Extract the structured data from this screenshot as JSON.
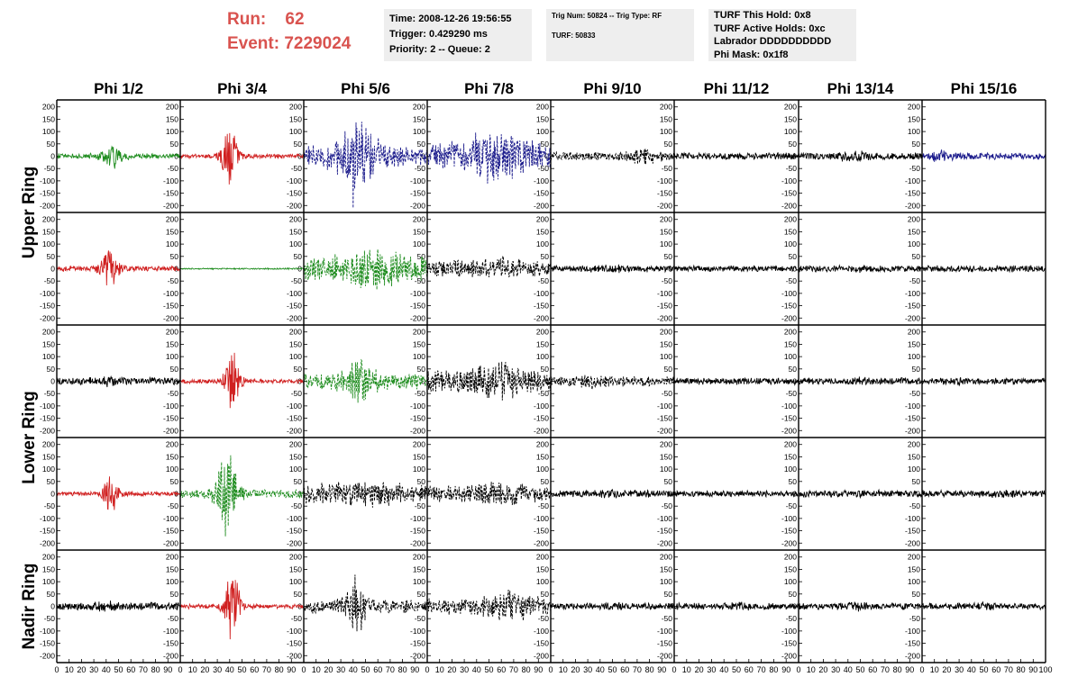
{
  "header": {
    "run_label": "Run:",
    "run_value": "62",
    "event_label": "Event:",
    "event_value": "7229024",
    "time": "Time: 2008-12-26 19:56:55",
    "trigger": "Trigger: 0.429290 ms",
    "priority": "Priority: 2 -- Queue: 2",
    "trig_num": "Trig Num: 50824 -- Trig Type: RF",
    "turf": "TURF: 50833",
    "turf_hold": "TURF This Hold: 0x8",
    "turf_active": "TURF Active Holds: 0xc",
    "labrador": "Labrador DDDDDDDDDD",
    "phi_mask": "Phi Mask: 0x1f8"
  },
  "colors": {
    "header_red": "#d9534f",
    "red": "#d02020",
    "green": "#1e8c1e",
    "blue": "#1c1c8c",
    "black": "#000000"
  },
  "chart_data": {
    "type": "line",
    "columns": [
      "Phi 1/2",
      "Phi 3/4",
      "Phi 5/6",
      "Phi 7/8",
      "Phi 9/10",
      "Phi 11/12",
      "Phi 13/14",
      "Phi 15/16"
    ],
    "rows": [
      "Upper Ring",
      "Upper Ring",
      "Lower Ring",
      "Lower Ring",
      "Nadir Ring"
    ],
    "row_labels": [
      {
        "text": "Upper Ring",
        "rows": [
          0,
          1
        ]
      },
      {
        "text": "Lower Ring",
        "rows": [
          2,
          3
        ]
      },
      {
        "text": "Nadir Ring",
        "rows": [
          4,
          4
        ]
      }
    ],
    "xlim": [
      0,
      100
    ],
    "ylim": [
      -210,
      210
    ],
    "x_ticks": [
      0,
      10,
      20,
      30,
      40,
      50,
      60,
      70,
      80,
      90,
      100
    ],
    "x_tick_labels": [
      "0",
      "10",
      "20",
      "30",
      "40",
      "50",
      "60",
      "70",
      "80",
      "90",
      "100"
    ],
    "y_ticks": [
      200,
      150,
      100,
      50,
      0,
      -50,
      -100,
      -150,
      -200
    ],
    "y_tick_labels": [
      "200",
      "150",
      "100",
      "50",
      "0",
      "-50",
      "-100",
      "-150",
      "-200"
    ],
    "panels": [
      [
        {
          "color": "green",
          "style": "solid",
          "noise": 12,
          "peak": 45,
          "center": 45,
          "width": 8,
          "seed": 11
        },
        {
          "color": "red",
          "style": "solid",
          "noise": 10,
          "peak": 150,
          "center": 40,
          "width": 6,
          "seed": 12
        },
        {
          "color": "blue",
          "style": "dashed",
          "noise": 45,
          "peak": 120,
          "center": 45,
          "width": 18,
          "spike": {
            "x": 40,
            "y": -210
          },
          "seed": 13
        },
        {
          "color": "blue",
          "style": "dashed",
          "noise": 60,
          "peak": 60,
          "center": 55,
          "width": 25,
          "seed": 14
        },
        {
          "color": "black",
          "style": "dashed",
          "noise": 20,
          "peak": 25,
          "center": 75,
          "width": 10,
          "seed": 15
        },
        {
          "color": "black",
          "style": "solid",
          "noise": 16,
          "peak": 0,
          "center": 50,
          "width": 10,
          "seed": 16
        },
        {
          "color": "black",
          "style": "solid",
          "noise": 16,
          "peak": 15,
          "center": 45,
          "width": 10,
          "seed": 17
        },
        {
          "color": "blue",
          "style": "solid",
          "noise": 15,
          "peak": 15,
          "center": 15,
          "width": 10,
          "seed": 18
        }
      ],
      [
        {
          "color": "red",
          "style": "solid",
          "noise": 12,
          "peak": 95,
          "center": 43,
          "width": 7,
          "seed": 21
        },
        {
          "color": "green",
          "style": "solid",
          "noise": 3,
          "peak": 0,
          "center": 50,
          "width": 10,
          "seed": 22
        },
        {
          "color": "green",
          "style": "dashed",
          "noise": 55,
          "peak": 40,
          "center": 55,
          "width": 25,
          "seed": 23
        },
        {
          "color": "black",
          "style": "dashed",
          "noise": 35,
          "peak": 25,
          "center": 55,
          "width": 20,
          "seed": 24
        },
        {
          "color": "black",
          "style": "solid",
          "noise": 15,
          "peak": 5,
          "center": 50,
          "width": 10,
          "seed": 25
        },
        {
          "color": "black",
          "style": "solid",
          "noise": 14,
          "peak": 0,
          "center": 50,
          "width": 10,
          "seed": 26
        },
        {
          "color": "black",
          "style": "solid",
          "noise": 14,
          "peak": 5,
          "center": 55,
          "width": 10,
          "seed": 27
        },
        {
          "color": "black",
          "style": "solid",
          "noise": 15,
          "peak": 0,
          "center": 50,
          "width": 10,
          "seed": 28
        }
      ],
      [
        {
          "color": "black",
          "style": "solid",
          "noise": 16,
          "peak": 10,
          "center": 40,
          "width": 10,
          "seed": 31
        },
        {
          "color": "red",
          "style": "solid",
          "noise": 10,
          "peak": 145,
          "center": 42,
          "width": 6,
          "seed": 32
        },
        {
          "color": "green",
          "style": "dashed",
          "noise": 35,
          "peak": 80,
          "center": 45,
          "width": 12,
          "seed": 33
        },
        {
          "color": "black",
          "style": "dashed",
          "noise": 50,
          "peak": 40,
          "center": 55,
          "width": 20,
          "seed": 34
        },
        {
          "color": "black",
          "style": "dashed",
          "noise": 22,
          "peak": 15,
          "center": 35,
          "width": 12,
          "seed": 35
        },
        {
          "color": "black",
          "style": "solid",
          "noise": 15,
          "peak": 0,
          "center": 50,
          "width": 10,
          "seed": 36
        },
        {
          "color": "black",
          "style": "solid",
          "noise": 15,
          "peak": 5,
          "center": 50,
          "width": 10,
          "seed": 37
        },
        {
          "color": "black",
          "style": "solid",
          "noise": 14,
          "peak": 5,
          "center": 30,
          "width": 10,
          "seed": 38
        }
      ],
      [
        {
          "color": "red",
          "style": "solid",
          "noise": 10,
          "peak": 85,
          "center": 44,
          "width": 6,
          "seed": 41
        },
        {
          "color": "green",
          "style": "dashed",
          "noise": 20,
          "peak": 190,
          "center": 38,
          "width": 8,
          "seed": 42
        },
        {
          "color": "black",
          "style": "dashed",
          "noise": 45,
          "peak": 20,
          "center": 50,
          "width": 20,
          "seed": 43
        },
        {
          "color": "black",
          "style": "dashed",
          "noise": 35,
          "peak": 25,
          "center": 60,
          "width": 20,
          "seed": 44
        },
        {
          "color": "black",
          "style": "solid",
          "noise": 16,
          "peak": 5,
          "center": 50,
          "width": 10,
          "seed": 45
        },
        {
          "color": "black",
          "style": "solid",
          "noise": 14,
          "peak": 0,
          "center": 50,
          "width": 10,
          "seed": 46
        },
        {
          "color": "black",
          "style": "solid",
          "noise": 14,
          "peak": 5,
          "center": 55,
          "width": 10,
          "seed": 47
        },
        {
          "color": "black",
          "style": "solid",
          "noise": 16,
          "peak": 5,
          "center": 70,
          "width": 10,
          "seed": 48
        }
      ],
      [
        {
          "color": "black",
          "style": "solid",
          "noise": 17,
          "peak": 10,
          "center": 40,
          "width": 10,
          "seed": 51
        },
        {
          "color": "red",
          "style": "solid",
          "noise": 10,
          "peak": 150,
          "center": 42,
          "width": 6,
          "seed": 52
        },
        {
          "color": "black",
          "style": "dashed",
          "noise": 30,
          "peak": 120,
          "center": 42,
          "width": 8,
          "seed": 53
        },
        {
          "color": "black",
          "style": "dashed",
          "noise": 35,
          "peak": 40,
          "center": 70,
          "width": 20,
          "seed": 54
        },
        {
          "color": "black",
          "style": "solid",
          "noise": 15,
          "peak": 5,
          "center": 50,
          "width": 10,
          "seed": 55
        },
        {
          "color": "black",
          "style": "solid",
          "noise": 15,
          "peak": 5,
          "center": 50,
          "width": 10,
          "seed": 56
        },
        {
          "color": "black",
          "style": "solid",
          "noise": 15,
          "peak": 10,
          "center": 45,
          "width": 10,
          "seed": 57
        },
        {
          "color": "black",
          "style": "solid",
          "noise": 14,
          "peak": 5,
          "center": 50,
          "width": 10,
          "seed": 58
        }
      ]
    ]
  }
}
